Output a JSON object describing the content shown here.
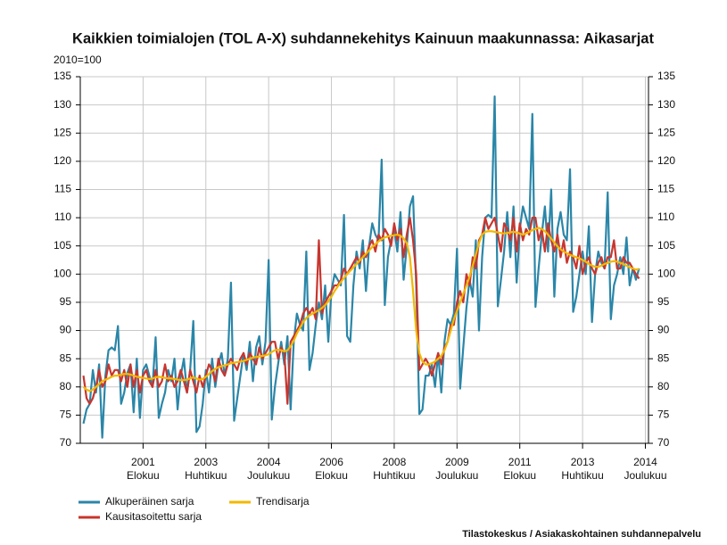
{
  "chart_data": {
    "type": "line",
    "title": "Kaikkien toimialojen (TOL A-X) suhdannekehitys Kainuun maakunnassa: Aikasarjat",
    "y_label": "2010=100",
    "source": "Tilastokeskus / Asiakaskohtainen suhdannepalvelu",
    "x": [
      "2000-01",
      "2000-02",
      "2000-03",
      "2000-04",
      "2000-05",
      "2000-06",
      "2000-07",
      "2000-08",
      "2000-09",
      "2000-10",
      "2000-11",
      "2000-12",
      "2001-01",
      "2001-02",
      "2001-03",
      "2001-04",
      "2001-05",
      "2001-06",
      "2001-07",
      "2001-08",
      "2001-09",
      "2001-10",
      "2001-11",
      "2001-12",
      "2002-01",
      "2002-02",
      "2002-03",
      "2002-04",
      "2002-05",
      "2002-06",
      "2002-07",
      "2002-08",
      "2002-09",
      "2002-10",
      "2002-11",
      "2002-12",
      "2003-01",
      "2003-02",
      "2003-03",
      "2003-04",
      "2003-05",
      "2003-06",
      "2003-07",
      "2003-08",
      "2003-09",
      "2003-10",
      "2003-11",
      "2003-12",
      "2004-01",
      "2004-02",
      "2004-03",
      "2004-04",
      "2004-05",
      "2004-06",
      "2004-07",
      "2004-08",
      "2004-09",
      "2004-10",
      "2004-11",
      "2004-12",
      "2005-01",
      "2005-02",
      "2005-03",
      "2005-04",
      "2005-05",
      "2005-06",
      "2005-07",
      "2005-08",
      "2005-09",
      "2005-10",
      "2005-11",
      "2005-12",
      "2006-01",
      "2006-02",
      "2006-03",
      "2006-04",
      "2006-05",
      "2006-06",
      "2006-07",
      "2006-08",
      "2006-09",
      "2006-10",
      "2006-11",
      "2006-12",
      "2007-01",
      "2007-02",
      "2007-03",
      "2007-04",
      "2007-05",
      "2007-06",
      "2007-07",
      "2007-08",
      "2007-09",
      "2007-10",
      "2007-11",
      "2007-12",
      "2008-01",
      "2008-02",
      "2008-03",
      "2008-04",
      "2008-05",
      "2008-06",
      "2008-07",
      "2008-08",
      "2008-09",
      "2008-10",
      "2008-11",
      "2008-12",
      "2009-01",
      "2009-02",
      "2009-03",
      "2009-04",
      "2009-05",
      "2009-06",
      "2009-07",
      "2009-08",
      "2009-09",
      "2009-10",
      "2009-11",
      "2009-12",
      "2010-01",
      "2010-02",
      "2010-03",
      "2010-04",
      "2010-05",
      "2010-06",
      "2010-07",
      "2010-08",
      "2010-09",
      "2010-10",
      "2010-11",
      "2010-12",
      "2011-01",
      "2011-02",
      "2011-03",
      "2011-04",
      "2011-05",
      "2011-06",
      "2011-07",
      "2011-08",
      "2011-09",
      "2011-10",
      "2011-11",
      "2011-12",
      "2012-01",
      "2012-02",
      "2012-03",
      "2012-04",
      "2012-05",
      "2012-06",
      "2012-07",
      "2012-08",
      "2012-09",
      "2012-10",
      "2012-11",
      "2012-12",
      "2013-01",
      "2013-02",
      "2013-03",
      "2013-04",
      "2013-05",
      "2013-06",
      "2013-07",
      "2013-08",
      "2013-09",
      "2013-10",
      "2013-11",
      "2013-12",
      "2014-01",
      "2014-02",
      "2014-03",
      "2014-04",
      "2014-05",
      "2014-06",
      "2014-07",
      "2014-08",
      "2014-09",
      "2014-10"
    ],
    "xlim": [
      "1999-12",
      "2015-01"
    ],
    "xticks": [
      {
        "value": "2001-08",
        "label": [
          "2001",
          "Elokuu"
        ]
      },
      {
        "value": "2003-04",
        "label": [
          "2003",
          "Huhtikuu"
        ]
      },
      {
        "value": "2004-12",
        "label": [
          "2004",
          "Joulukuu"
        ]
      },
      {
        "value": "2006-08",
        "label": [
          "2006",
          "Elokuu"
        ]
      },
      {
        "value": "2008-04",
        "label": [
          "2008",
          "Huhtikuu"
        ]
      },
      {
        "value": "2009-12",
        "label": [
          "2009",
          "Joulukuu"
        ]
      },
      {
        "value": "2011-08",
        "label": [
          "2011",
          "Elokuu"
        ]
      },
      {
        "value": "2013-04",
        "label": [
          "2013",
          "Huhtikuu"
        ]
      },
      {
        "value": "2014-12",
        "label": [
          "2014",
          "Joulukuu"
        ]
      }
    ],
    "ylim": [
      70,
      135
    ],
    "yticks": [
      70,
      75,
      80,
      85,
      90,
      95,
      100,
      105,
      110,
      115,
      120,
      125,
      130,
      135
    ],
    "grid": true,
    "series": [
      {
        "name": "Alkuperäinen sarja",
        "color": "#2a86a8",
        "values": [
          73.5,
          76,
          77,
          83,
          79,
          84,
          71,
          82,
          86.5,
          87,
          86.5,
          90.8,
          77,
          79,
          82.5,
          84,
          75.5,
          85,
          74.5,
          83,
          84,
          82,
          80,
          88.8,
          74.5,
          77,
          79,
          83,
          81,
          85,
          76,
          82,
          85,
          79,
          83,
          91.7,
          72,
          73,
          77,
          83,
          79,
          85,
          80,
          84,
          86,
          82,
          85,
          98.5,
          74,
          78,
          82,
          86,
          83,
          88,
          81,
          87,
          89,
          84,
          88,
          102.5,
          74.2,
          80,
          84,
          88,
          84,
          89,
          76,
          88,
          93,
          91,
          90,
          104,
          83,
          86,
          91,
          95,
          92,
          98,
          88,
          97,
          100,
          99,
          98,
          110.5,
          89,
          88,
          98,
          104,
          101,
          106,
          97,
          105,
          109,
          107,
          106,
          120.3,
          94.5,
          103,
          106,
          108,
          104,
          111,
          99,
          105,
          112,
          113.8,
          98,
          75.2,
          76,
          82,
          82,
          84,
          80,
          86,
          79,
          88,
          92,
          91,
          93,
          104.5,
          79.7,
          87,
          94,
          99,
          96,
          106,
          90,
          103,
          110,
          110.5,
          110,
          131.5,
          94.3,
          99,
          104,
          111,
          103,
          112,
          98.5,
          108,
          112,
          110,
          108,
          128.4,
          94.2,
          101,
          107,
          112,
          104,
          115,
          96,
          108,
          111,
          107,
          106,
          118.6,
          93.3,
          96,
          100,
          104,
          100,
          108.5,
          91.5,
          100,
          104,
          102,
          101,
          114.5,
          92,
          98,
          100,
          103,
          100,
          106.5,
          98,
          101,
          99,
          101
        ]
      },
      {
        "name": "Kausitasoitettu sarja",
        "color": "#c8352e",
        "values": [
          82,
          78,
          77,
          78,
          80,
          83,
          80,
          81,
          84,
          82,
          83,
          83,
          81,
          83,
          80,
          84,
          80,
          83,
          79,
          82,
          83,
          81,
          80,
          83,
          80,
          81,
          84,
          81,
          82,
          80,
          81,
          83,
          81,
          79,
          83,
          81,
          79,
          82,
          80,
          82,
          84,
          83,
          81,
          85,
          83,
          82,
          84,
          85,
          84,
          83,
          85,
          86,
          84,
          86,
          85,
          84,
          87,
          85,
          86,
          87,
          88,
          88,
          85,
          87,
          86,
          77,
          88,
          89,
          90,
          91,
          93,
          94,
          93,
          94,
          92,
          106,
          93,
          95,
          96,
          97,
          98,
          98,
          99,
          101,
          100,
          101,
          102,
          103,
          102,
          104,
          103,
          105,
          106,
          104,
          107,
          106,
          108,
          107,
          105,
          109,
          106,
          108,
          103,
          107,
          110,
          106,
          100,
          83,
          84,
          85,
          84,
          82,
          84,
          86,
          84,
          87,
          88,
          91,
          91,
          95,
          97,
          95,
          100,
          98,
          103,
          101,
          106,
          107,
          110,
          108,
          109,
          110,
          107,
          104,
          109,
          108,
          106,
          110,
          104,
          109,
          106,
          108,
          107,
          110,
          110,
          106,
          108,
          104,
          109,
          106,
          104,
          107,
          103,
          106,
          102,
          104,
          103,
          101,
          105,
          100,
          102,
          103,
          101,
          100,
          102,
          103,
          101,
          103,
          103,
          106,
          101,
          101,
          103,
          102,
          102,
          101,
          100,
          99.2
        ]
      },
      {
        "name": "Trendisarja",
        "color": "#f2b800",
        "values": [
          80,
          79.5,
          79.3,
          79.5,
          80,
          80.5,
          81,
          81.3,
          81.5,
          81.8,
          82,
          82,
          82.2,
          82.3,
          82.3,
          82.2,
          82,
          81.8,
          81.7,
          81.6,
          81.5,
          81.4,
          81.5,
          81.7,
          81.8,
          81.7,
          81.6,
          81.5,
          81.5,
          81.4,
          81.3,
          81.2,
          81.2,
          81.3,
          81.5,
          81.7,
          81.5,
          81.3,
          81.4,
          81.8,
          82.3,
          82.8,
          83.2,
          83.5,
          83.7,
          83.8,
          84,
          84.2,
          84.3,
          84.4,
          84.5,
          84.6,
          84.8,
          85,
          85.2,
          85.3,
          85.4,
          85.5,
          85.6,
          85.8,
          86.2,
          86.5,
          86.6,
          86.5,
          86.3,
          86.5,
          87.2,
          88.2,
          89.5,
          90.5,
          91.5,
          92.2,
          92.7,
          93,
          93.3,
          93.6,
          94,
          94.5,
          95.2,
          96,
          97,
          97.8,
          98.6,
          99.3,
          100,
          100.6,
          101.2,
          101.8,
          102.4,
          103,
          103.6,
          104.2,
          104.8,
          105.3,
          105.8,
          106.2,
          106.5,
          106.7,
          106.8,
          106.9,
          107,
          106.8,
          106.3,
          105.5,
          103,
          97,
          90,
          86,
          84.5,
          84,
          84,
          84.2,
          84.5,
          85,
          85.5,
          86.5,
          88,
          90,
          92,
          93.5,
          95,
          96.5,
          98,
          99.5,
          101.5,
          103.5,
          105.5,
          107,
          107.5,
          107.6,
          107.6,
          107.5,
          107.4,
          107.3,
          107.2,
          107.3,
          107.4,
          107.5,
          107.4,
          107.2,
          107,
          107.2,
          107.5,
          107.8,
          108,
          108.2,
          108,
          107.6,
          107,
          106.3,
          105.6,
          104.9,
          104.4,
          104,
          103.7,
          103.4,
          103.2,
          103,
          102.8,
          102.5,
          102.2,
          101.8,
          101.5,
          101.3,
          101.3,
          101.5,
          101.8,
          102,
          102.2,
          102.3,
          102.2,
          102,
          101.8,
          101.5,
          101.2,
          101,
          100.8,
          100.9
        ]
      }
    ]
  }
}
